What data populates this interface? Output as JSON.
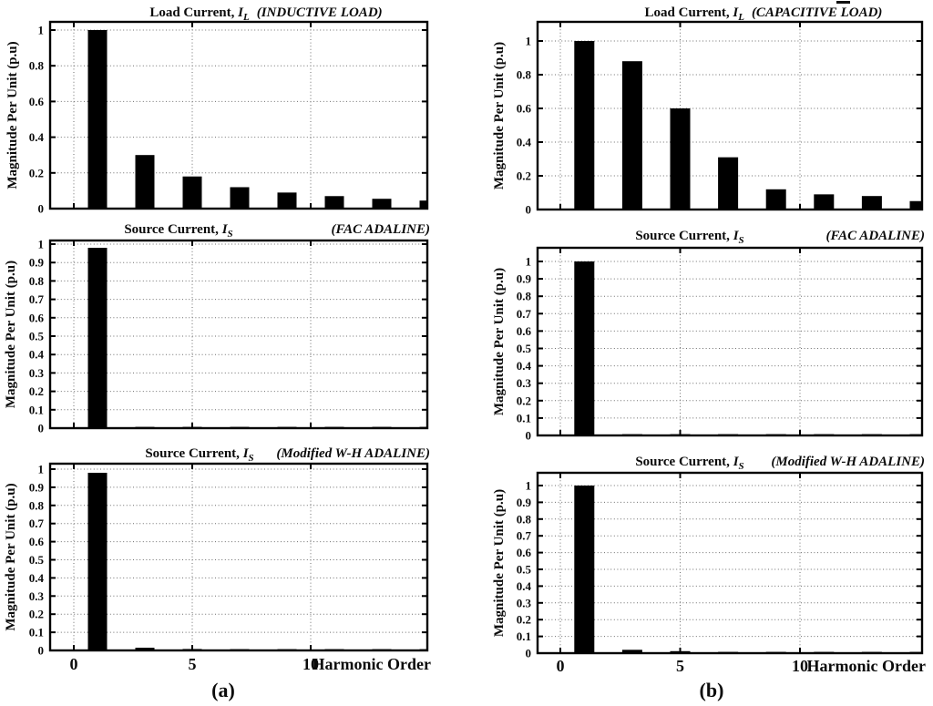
{
  "figure": {
    "background": "#ffffff",
    "bar_color": "#000000",
    "axis_color": "#000000",
    "grid_color": "#6e6e6e",
    "ylabel": "Magnitude Per Unit (p.u)",
    "xlabel": "Harmonic Order",
    "captions": [
      "(a)",
      "(b)"
    ]
  },
  "chart_data": [
    {
      "id": "load-current-inductive",
      "type": "bar",
      "title": {
        "prefix": "Load Current, ",
        "symbol": "I",
        "subscript": "L",
        "note": "(INDUCTIVE LOAD)"
      },
      "ylabel": "Magnitude Per Unit (p.u)",
      "x": [
        1,
        3,
        5,
        7,
        9,
        11,
        13,
        15
      ],
      "values": [
        1.0,
        0.3,
        0.18,
        0.12,
        0.09,
        0.07,
        0.055,
        0.045
      ],
      "xlim": [
        -1,
        15
      ],
      "ylim": [
        0,
        1.05
      ],
      "xticks": [
        0,
        5,
        10
      ],
      "yticks": [
        0,
        0.2,
        0.4,
        0.6,
        0.8,
        1
      ],
      "ytick_labels": [
        "0",
        "0.2",
        "0.4",
        "0.6",
        "0.8",
        "1"
      ],
      "grid": true
    },
    {
      "id": "load-current-capacitive",
      "type": "bar",
      "title": {
        "prefix": "Load Current, ",
        "symbol": "I",
        "subscript": "L",
        "note": "(CAPACITIVE LOAD)"
      },
      "ylabel": "Magnitude Per Unit (p.u)",
      "x": [
        1,
        3,
        5,
        7,
        9,
        11,
        13,
        15
      ],
      "values": [
        1.0,
        0.88,
        0.6,
        0.31,
        0.12,
        0.09,
        0.08,
        0.05
      ],
      "xlim": [
        -1,
        15
      ],
      "ylim": [
        0,
        1.11
      ],
      "xticks": [
        0,
        5,
        10
      ],
      "yticks": [
        0,
        0.2,
        0.4,
        0.6,
        0.8,
        1
      ],
      "ytick_labels": [
        "0",
        "0.2",
        "0.4",
        "0.6",
        "0.8",
        "1"
      ],
      "grid": true
    },
    {
      "id": "source-current-fac-adaline-inductive",
      "type": "bar",
      "title": {
        "prefix": "Source Current, ",
        "symbol": "I",
        "subscript": "S",
        "note": "(FAC ADALINE)"
      },
      "ylabel": "Magnitude Per Unit (p.u)",
      "x": [
        1,
        3,
        5,
        7,
        9,
        11,
        13,
        15
      ],
      "values": [
        0.98,
        0.004,
        0.005,
        0.006,
        0.004,
        0.007,
        0.004,
        0.005
      ],
      "xlim": [
        -1,
        15
      ],
      "ylim": [
        0,
        1.02
      ],
      "xticks": [
        0,
        5,
        10
      ],
      "yticks": [
        0,
        0.1,
        0.2,
        0.3,
        0.4,
        0.5,
        0.6,
        0.7,
        0.8,
        0.9,
        1
      ],
      "ytick_labels": [
        "0",
        "0.1",
        "0.2",
        "0.3",
        "0.4",
        "0.5",
        "0.6",
        "0.7",
        "0.8",
        "0.9",
        "1"
      ],
      "grid": true
    },
    {
      "id": "source-current-fac-adaline-capacitive",
      "type": "bar",
      "title": {
        "prefix": "Source Current, ",
        "symbol": "I",
        "subscript": "S",
        "note": "(FAC ADALINE)"
      },
      "ylabel": "Magnitude Per Unit (p.u)",
      "x": [
        1,
        3,
        5,
        7,
        9,
        11,
        13,
        15
      ],
      "values": [
        1.0,
        0.005,
        0.006,
        0.007,
        0.006,
        0.004,
        0.005,
        0.004
      ],
      "xlim": [
        -1,
        15
      ],
      "ylim": [
        0,
        1.08
      ],
      "xticks": [
        0,
        5,
        10
      ],
      "yticks": [
        0,
        0.1,
        0.2,
        0.3,
        0.4,
        0.5,
        0.6,
        0.7,
        0.8,
        0.9,
        1
      ],
      "ytick_labels": [
        "0",
        "0.1",
        "0.2",
        "0.3",
        "0.4",
        "0.5",
        "0.6",
        "0.7",
        "0.8",
        "0.9",
        "1"
      ],
      "grid": true
    },
    {
      "id": "source-current-modified-wh-adaline-inductive",
      "type": "bar",
      "title": {
        "prefix": "Source Current, ",
        "symbol": "I",
        "subscript": "S",
        "note": "(Modified W-H ADALINE)"
      },
      "ylabel": "Magnitude Per Unit (p.u)",
      "xlabel": "Harmonic Order",
      "x": [
        1,
        3,
        5,
        7,
        9,
        11,
        13,
        15
      ],
      "values": [
        0.98,
        0.015,
        0.008,
        0.003,
        0.003,
        0.003,
        0.003,
        0.003
      ],
      "xlim": [
        -1,
        15
      ],
      "ylim": [
        0,
        1.03
      ],
      "xticks": [
        0,
        5,
        10
      ],
      "xtick_labels": [
        "0",
        "5",
        "10"
      ],
      "yticks": [
        0,
        0.1,
        0.2,
        0.3,
        0.4,
        0.5,
        0.6,
        0.7,
        0.8,
        0.9,
        1
      ],
      "ytick_labels": [
        "0",
        "0.1",
        "0.2",
        "0.3",
        "0.4",
        "0.5",
        "0.6",
        "0.7",
        "0.8",
        "0.9",
        "1"
      ],
      "grid": true
    },
    {
      "id": "source-current-modified-wh-adaline-capacitive",
      "type": "bar",
      "title": {
        "prefix": "Source Current, ",
        "symbol": "I",
        "subscript": "S",
        "note": "(Modified W-H ADALINE)"
      },
      "ylabel": "Magnitude Per Unit (p.u)",
      "xlabel": "Harmonic Order",
      "x": [
        1,
        3,
        5,
        7,
        9,
        11,
        13,
        15
      ],
      "values": [
        1.0,
        0.02,
        0.012,
        0.006,
        0.004,
        0.003,
        0.004,
        0.003
      ],
      "xlim": [
        -1,
        15
      ],
      "ylim": [
        0,
        1.08
      ],
      "xticks": [
        0,
        5,
        10
      ],
      "xtick_labels": [
        "0",
        "5",
        "10"
      ],
      "yticks": [
        0,
        0.1,
        0.2,
        0.3,
        0.4,
        0.5,
        0.6,
        0.7,
        0.8,
        0.9,
        1
      ],
      "ytick_labels": [
        "0",
        "0.1",
        "0.2",
        "0.3",
        "0.4",
        "0.5",
        "0.6",
        "0.7",
        "0.8",
        "0.9",
        "1"
      ],
      "grid": true
    }
  ]
}
